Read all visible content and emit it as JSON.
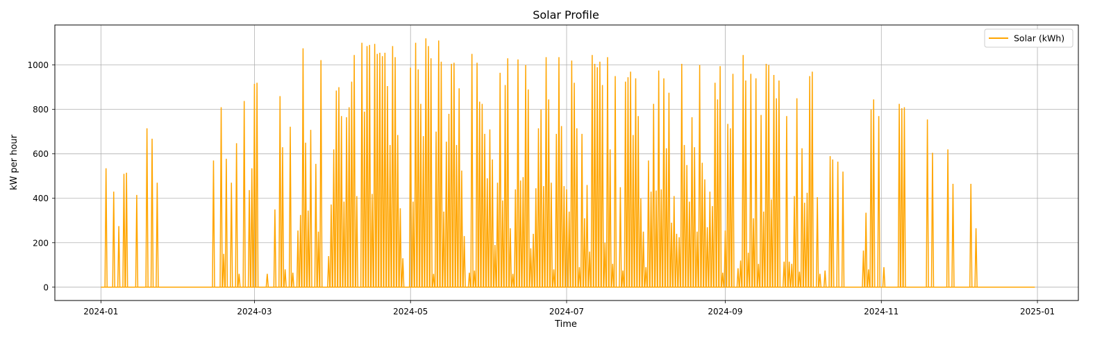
{
  "chart_data": {
    "type": "line",
    "title": "Solar Profile",
    "xlabel": "Time",
    "ylabel": "kW per hour",
    "xlim": [
      "2023-12-14",
      "2025-01-17"
    ],
    "ylim": [
      -60,
      1180
    ],
    "xticks": [
      "2024-01",
      "2024-03",
      "2024-05",
      "2024-07",
      "2024-09",
      "2024-11",
      "2025-01"
    ],
    "yticks": [
      0,
      200,
      400,
      600,
      800,
      1000
    ],
    "grid": true,
    "legend_position": "top-right",
    "series": [
      {
        "name": "Solar (kWh)",
        "color": "#FFA500",
        "x_start": "2024-01-01",
        "x_end": "2024-12-31",
        "peaks": [
          [
            "2024-01-03",
            535
          ],
          [
            "2024-01-06",
            430
          ],
          [
            "2024-01-08",
            275
          ],
          [
            "2024-01-10",
            510
          ],
          [
            "2024-01-11",
            515
          ],
          [
            "2024-01-15",
            415
          ],
          [
            "2024-01-19",
            715
          ],
          [
            "2024-01-21",
            668
          ],
          [
            "2024-01-23",
            470
          ],
          [
            "2024-02-14",
            570
          ],
          [
            "2024-02-17",
            810
          ],
          [
            "2024-02-18",
            150
          ],
          [
            "2024-02-19",
            578
          ],
          [
            "2024-02-21",
            470
          ],
          [
            "2024-02-23",
            648
          ],
          [
            "2024-02-24",
            60
          ],
          [
            "2024-02-26",
            838
          ],
          [
            "2024-02-28",
            437
          ],
          [
            "2024-02-29",
            535
          ],
          [
            "2024-03-01",
            915
          ],
          [
            "2024-03-02",
            920
          ],
          [
            "2024-03-06",
            60
          ],
          [
            "2024-03-09",
            350
          ],
          [
            "2024-03-11",
            860
          ],
          [
            "2024-03-12",
            630
          ],
          [
            "2024-03-13",
            80
          ],
          [
            "2024-03-15",
            722
          ],
          [
            "2024-03-16",
            65
          ],
          [
            "2024-03-18",
            255
          ],
          [
            "2024-03-19",
            325
          ],
          [
            "2024-03-20",
            1075
          ],
          [
            "2024-03-21",
            650
          ],
          [
            "2024-03-22",
            345
          ],
          [
            "2024-03-23",
            708
          ],
          [
            "2024-03-25",
            555
          ],
          [
            "2024-03-26",
            250
          ],
          [
            "2024-03-27",
            1022
          ],
          [
            "2024-03-30",
            140
          ],
          [
            "2024-03-31",
            372
          ],
          [
            "2024-04-01",
            620
          ],
          [
            "2024-04-02",
            885
          ],
          [
            "2024-04-03",
            900
          ],
          [
            "2024-04-04",
            770
          ],
          [
            "2024-04-05",
            385
          ],
          [
            "2024-04-06",
            765
          ],
          [
            "2024-04-07",
            810
          ],
          [
            "2024-04-08",
            925
          ],
          [
            "2024-04-09",
            1045
          ],
          [
            "2024-04-10",
            410
          ],
          [
            "2024-04-12",
            1100
          ],
          [
            "2024-04-13",
            790
          ],
          [
            "2024-04-14",
            1085
          ],
          [
            "2024-04-15",
            1090
          ],
          [
            "2024-04-16",
            420
          ],
          [
            "2024-04-17",
            1095
          ],
          [
            "2024-04-18",
            1050
          ],
          [
            "2024-04-19",
            1055
          ],
          [
            "2024-04-20",
            1040
          ],
          [
            "2024-04-21",
            1055
          ],
          [
            "2024-04-22",
            905
          ],
          [
            "2024-04-23",
            640
          ],
          [
            "2024-04-24",
            1085
          ],
          [
            "2024-04-25",
            1035
          ],
          [
            "2024-04-26",
            685
          ],
          [
            "2024-04-27",
            355
          ],
          [
            "2024-04-28",
            130
          ],
          [
            "2024-05-01",
            988
          ],
          [
            "2024-05-02",
            385
          ],
          [
            "2024-05-03",
            1100
          ],
          [
            "2024-05-04",
            980
          ],
          [
            "2024-05-05",
            825
          ],
          [
            "2024-05-06",
            680
          ],
          [
            "2024-05-07",
            1120
          ],
          [
            "2024-05-08",
            1085
          ],
          [
            "2024-05-09",
            1030
          ],
          [
            "2024-05-10",
            60
          ],
          [
            "2024-05-11",
            700
          ],
          [
            "2024-05-12",
            1110
          ],
          [
            "2024-05-13",
            1015
          ],
          [
            "2024-05-14",
            340
          ],
          [
            "2024-05-15",
            655
          ],
          [
            "2024-05-16",
            780
          ],
          [
            "2024-05-17",
            1005
          ],
          [
            "2024-05-18",
            1010
          ],
          [
            "2024-05-19",
            640
          ],
          [
            "2024-05-20",
            895
          ],
          [
            "2024-05-21",
            525
          ],
          [
            "2024-05-22",
            230
          ],
          [
            "2024-05-24",
            65
          ],
          [
            "2024-05-25",
            1050
          ],
          [
            "2024-05-26",
            75
          ],
          [
            "2024-05-27",
            1010
          ],
          [
            "2024-05-28",
            835
          ],
          [
            "2024-05-29",
            825
          ],
          [
            "2024-05-30",
            690
          ],
          [
            "2024-05-31",
            490
          ],
          [
            "2024-06-01",
            710
          ],
          [
            "2024-06-02",
            575
          ],
          [
            "2024-06-03",
            190
          ],
          [
            "2024-06-04",
            470
          ],
          [
            "2024-06-05",
            965
          ],
          [
            "2024-06-06",
            390
          ],
          [
            "2024-06-07",
            910
          ],
          [
            "2024-06-08",
            1030
          ],
          [
            "2024-06-09",
            265
          ],
          [
            "2024-06-10",
            60
          ],
          [
            "2024-06-11",
            440
          ],
          [
            "2024-06-12",
            1025
          ],
          [
            "2024-06-13",
            480
          ],
          [
            "2024-06-14",
            495
          ],
          [
            "2024-06-15",
            1000
          ],
          [
            "2024-06-16",
            890
          ],
          [
            "2024-06-17",
            175
          ],
          [
            "2024-06-18",
            240
          ],
          [
            "2024-06-19",
            445
          ],
          [
            "2024-06-20",
            715
          ],
          [
            "2024-06-21",
            800
          ],
          [
            "2024-06-22",
            455
          ],
          [
            "2024-06-23",
            1035
          ],
          [
            "2024-06-24",
            845
          ],
          [
            "2024-06-25",
            470
          ],
          [
            "2024-06-26",
            80
          ],
          [
            "2024-06-27",
            690
          ],
          [
            "2024-06-28",
            1035
          ],
          [
            "2024-06-29",
            725
          ],
          [
            "2024-06-30",
            455
          ],
          [
            "2024-07-01",
            440
          ],
          [
            "2024-07-02",
            340
          ],
          [
            "2024-07-03",
            1020
          ],
          [
            "2024-07-04",
            920
          ],
          [
            "2024-07-05",
            715
          ],
          [
            "2024-07-06",
            90
          ],
          [
            "2024-07-07",
            690
          ],
          [
            "2024-07-08",
            310
          ],
          [
            "2024-07-09",
            460
          ],
          [
            "2024-07-10",
            160
          ],
          [
            "2024-07-11",
            1045
          ],
          [
            "2024-07-12",
            1005
          ],
          [
            "2024-07-13",
            990
          ],
          [
            "2024-07-14",
            1015
          ],
          [
            "2024-07-15",
            910
          ],
          [
            "2024-07-16",
            200
          ],
          [
            "2024-07-17",
            1035
          ],
          [
            "2024-07-18",
            620
          ],
          [
            "2024-07-19",
            105
          ],
          [
            "2024-07-20",
            950
          ],
          [
            "2024-07-22",
            450
          ],
          [
            "2024-07-23",
            75
          ],
          [
            "2024-07-24",
            925
          ],
          [
            "2024-07-25",
            945
          ],
          [
            "2024-07-26",
            970
          ],
          [
            "2024-07-27",
            685
          ],
          [
            "2024-07-28",
            940
          ],
          [
            "2024-07-29",
            770
          ],
          [
            "2024-07-30",
            400
          ],
          [
            "2024-07-31",
            250
          ],
          [
            "2024-08-01",
            90
          ],
          [
            "2024-08-02",
            570
          ],
          [
            "2024-08-03",
            430
          ],
          [
            "2024-08-04",
            825
          ],
          [
            "2024-08-05",
            435
          ],
          [
            "2024-08-06",
            975
          ],
          [
            "2024-08-07",
            440
          ],
          [
            "2024-08-08",
            940
          ],
          [
            "2024-08-09",
            625
          ],
          [
            "2024-08-10",
            875
          ],
          [
            "2024-08-11",
            290
          ],
          [
            "2024-08-12",
            410
          ],
          [
            "2024-08-13",
            240
          ],
          [
            "2024-08-14",
            225
          ],
          [
            "2024-08-15",
            1005
          ],
          [
            "2024-08-16",
            640
          ],
          [
            "2024-08-17",
            550
          ],
          [
            "2024-08-18",
            385
          ],
          [
            "2024-08-19",
            765
          ],
          [
            "2024-08-20",
            630
          ],
          [
            "2024-08-21",
            250
          ],
          [
            "2024-08-22",
            1000
          ],
          [
            "2024-08-23",
            560
          ],
          [
            "2024-08-24",
            485
          ],
          [
            "2024-08-25",
            270
          ],
          [
            "2024-08-26",
            430
          ],
          [
            "2024-08-27",
            365
          ],
          [
            "2024-08-28",
            920
          ],
          [
            "2024-08-29",
            845
          ],
          [
            "2024-08-30",
            995
          ],
          [
            "2024-08-31",
            65
          ],
          [
            "2024-09-01",
            255
          ],
          [
            "2024-09-02",
            735
          ],
          [
            "2024-09-03",
            715
          ],
          [
            "2024-09-04",
            960
          ],
          [
            "2024-09-06",
            85
          ],
          [
            "2024-09-07",
            120
          ],
          [
            "2024-09-08",
            1045
          ],
          [
            "2024-09-09",
            930
          ],
          [
            "2024-09-10",
            155
          ],
          [
            "2024-09-11",
            960
          ],
          [
            "2024-09-12",
            310
          ],
          [
            "2024-09-13",
            940
          ],
          [
            "2024-09-14",
            105
          ],
          [
            "2024-09-15",
            775
          ],
          [
            "2024-09-16",
            340
          ],
          [
            "2024-09-17",
            1005
          ],
          [
            "2024-09-18",
            1000
          ],
          [
            "2024-09-19",
            395
          ],
          [
            "2024-09-20",
            955
          ],
          [
            "2024-09-21",
            850
          ],
          [
            "2024-09-22",
            930
          ],
          [
            "2024-09-24",
            115
          ],
          [
            "2024-09-25",
            770
          ],
          [
            "2024-09-26",
            115
          ],
          [
            "2024-09-27",
            105
          ],
          [
            "2024-09-28",
            410
          ],
          [
            "2024-09-29",
            850
          ],
          [
            "2024-09-30",
            70
          ],
          [
            "2024-10-01",
            625
          ],
          [
            "2024-10-02",
            380
          ],
          [
            "2024-10-03",
            425
          ],
          [
            "2024-10-04",
            950
          ],
          [
            "2024-10-05",
            970
          ],
          [
            "2024-10-07",
            405
          ],
          [
            "2024-10-08",
            60
          ],
          [
            "2024-10-10",
            75
          ],
          [
            "2024-10-12",
            590
          ],
          [
            "2024-10-13",
            575
          ],
          [
            "2024-10-15",
            565
          ],
          [
            "2024-10-17",
            520
          ],
          [
            "2024-10-25",
            165
          ],
          [
            "2024-10-26",
            335
          ],
          [
            "2024-10-27",
            80
          ],
          [
            "2024-10-28",
            800
          ],
          [
            "2024-10-29",
            845
          ],
          [
            "2024-10-31",
            770
          ],
          [
            "2024-11-02",
            90
          ],
          [
            "2024-11-08",
            825
          ],
          [
            "2024-11-09",
            805
          ],
          [
            "2024-11-10",
            810
          ],
          [
            "2024-11-19",
            755
          ],
          [
            "2024-11-21",
            605
          ],
          [
            "2024-11-27",
            620
          ],
          [
            "2024-11-29",
            465
          ],
          [
            "2024-12-06",
            465
          ],
          [
            "2024-12-08",
            265
          ]
        ]
      }
    ]
  }
}
